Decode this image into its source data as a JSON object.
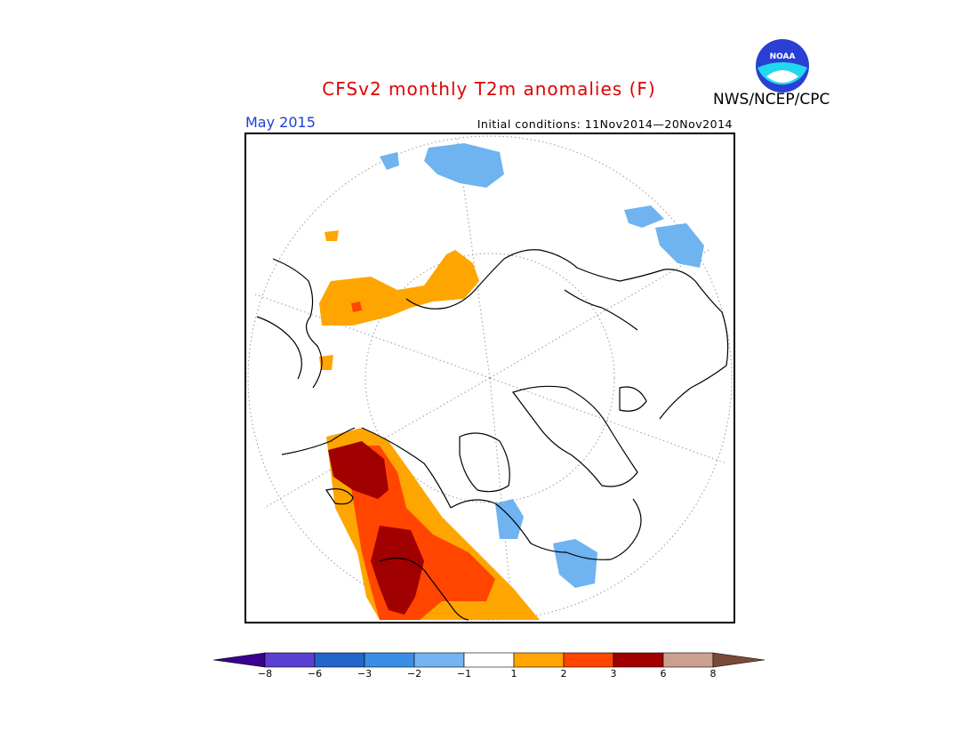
{
  "header": {
    "title": "CFSv2 monthly T2m anomalies (F)",
    "valid_month": "May 2015",
    "initial_conditions": "Initial conditions: 11Nov2014—20Nov2014",
    "organization": "NWS/NCEP/CPC",
    "logo_text": "NOAA"
  },
  "colors": {
    "title": "#e00000",
    "valid_month": "#1a3fd6",
    "anomaly_warm_1_2": "#ffa500",
    "anomaly_warm_2_3": "#ff4500",
    "anomaly_warm_3_6": "#a00000",
    "anomaly_cool_1_2": "#6fb3f0"
  },
  "legend": {
    "ticks": [
      "−8",
      "−6",
      "−3",
      "−2",
      "−1",
      "1",
      "2",
      "3",
      "6",
      "8"
    ],
    "colors": [
      "#3a0090",
      "#5a40d0",
      "#2266cc",
      "#3a8ee6",
      "#74b4f2",
      "#ffffff",
      "#ffa500",
      "#ff4500",
      "#a00000",
      "#cca090",
      "#7a4a38"
    ]
  }
}
